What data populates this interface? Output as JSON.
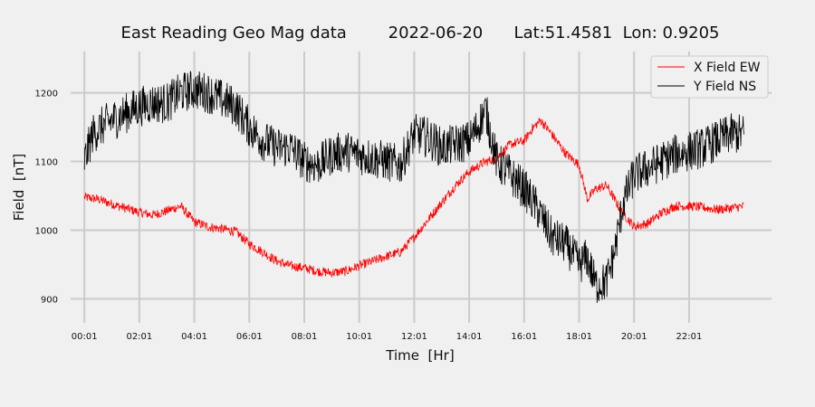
{
  "chart_data": {
    "type": "line",
    "title": "East Reading Geo Mag data        2022-06-20      Lat:51.4581  Lon: 0.9205",
    "xlabel": "Time  [Hr]",
    "ylabel": "Field  [nT]",
    "x_ticks": [
      "00:01",
      "02:01",
      "04:01",
      "06:01",
      "08:01",
      "10:01",
      "12:01",
      "14:01",
      "16:01",
      "18:01",
      "20:01",
      "22:01"
    ],
    "x_tick_hours": [
      0,
      2,
      4,
      6,
      8,
      10,
      12,
      14,
      16,
      18,
      20,
      22
    ],
    "xlim": [
      -0.5,
      25
    ],
    "y_ticks": [
      900,
      1000,
      1100,
      1200
    ],
    "ylim": [
      865,
      1260
    ],
    "grid": true,
    "legend_position": "top-right",
    "series": [
      {
        "name": "X Field EW",
        "color": "#ff0000",
        "noise": 7,
        "x": [
          0,
          0.5,
          1,
          1.5,
          2,
          2.5,
          3,
          3.5,
          4,
          4.5,
          5,
          5.5,
          6,
          6.5,
          7,
          7.5,
          8,
          8.5,
          9,
          9.5,
          10,
          10.5,
          11,
          11.5,
          12,
          12.5,
          13,
          13.5,
          14,
          14.5,
          15,
          15.5,
          16,
          16.3,
          16.6,
          17,
          17.5,
          18,
          18.3,
          18.6,
          19,
          19.5,
          20,
          20.5,
          21,
          21.5,
          22,
          22.5,
          23,
          23.5,
          24
        ],
        "y": [
          1048,
          1045,
          1038,
          1032,
          1026,
          1022,
          1028,
          1035,
          1012,
          1005,
          1002,
          998,
          980,
          968,
          955,
          948,
          945,
          940,
          938,
          940,
          948,
          955,
          962,
          968,
          990,
          1015,
          1040,
          1065,
          1085,
          1098,
          1105,
          1125,
          1130,
          1148,
          1160,
          1140,
          1112,
          1095,
          1045,
          1060,
          1065,
          1030,
          1005,
          1010,
          1025,
          1035,
          1035,
          1033,
          1030,
          1032,
          1035
        ]
      },
      {
        "name": "Y Field NS",
        "color": "#000000",
        "noise": 30,
        "x": [
          0,
          0.3,
          0.6,
          1,
          1.5,
          2,
          2.5,
          3,
          3.5,
          4,
          4.5,
          5,
          5.5,
          6,
          6.5,
          7,
          7.5,
          8,
          8.5,
          9,
          9.5,
          10,
          10.5,
          11,
          11.5,
          12,
          12.5,
          13,
          13.5,
          14,
          14.3,
          14.6,
          15,
          15.5,
          16,
          16.5,
          17,
          17.5,
          18,
          18.3,
          18.6,
          19,
          19.3,
          19.6,
          20,
          20.5,
          21,
          21.5,
          22,
          22.5,
          23,
          23.5,
          24
        ],
        "y": [
          1100,
          1140,
          1150,
          1160,
          1170,
          1180,
          1185,
          1185,
          1200,
          1205,
          1200,
          1190,
          1180,
          1150,
          1130,
          1120,
          1120,
          1100,
          1095,
          1110,
          1115,
          1110,
          1105,
          1100,
          1095,
          1140,
          1135,
          1120,
          1125,
          1130,
          1150,
          1175,
          1100,
          1080,
          1060,
          1030,
          990,
          980,
          950,
          960,
          920,
          925,
          970,
          1040,
          1080,
          1090,
          1100,
          1110,
          1115,
          1120,
          1130,
          1140,
          1140
        ]
      }
    ]
  }
}
